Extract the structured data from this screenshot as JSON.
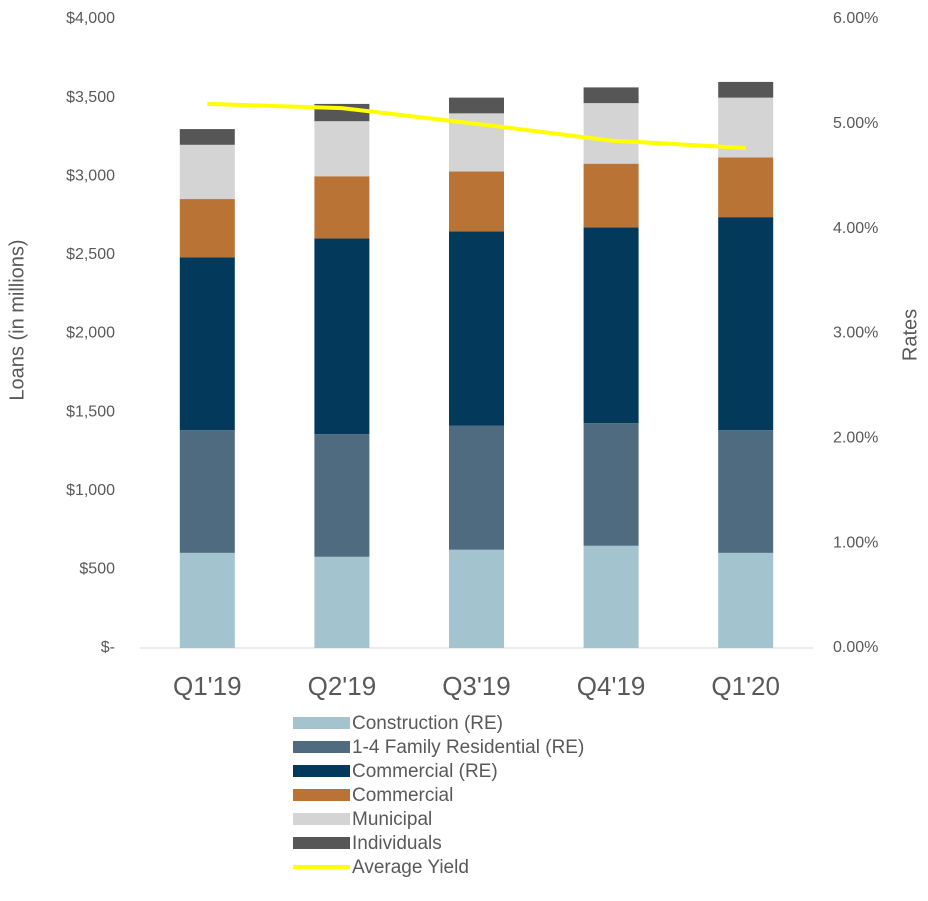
{
  "chart_data": {
    "type": "bar",
    "stacked": true,
    "ylabel": "Loans (in millions)",
    "y2label": "Rates",
    "categories": [
      "Q1'19",
      "Q2'19",
      "Q3'19",
      "Q4'19",
      "Q1'20"
    ],
    "series": [
      {
        "name": "Construction (RE)",
        "color": "#a3c3ce",
        "values": [
          605,
          580,
          625,
          650,
          605
        ]
      },
      {
        "name": "1-4 Family Residential (RE)",
        "color": "#4f6b80",
        "values": [
          780,
          780,
          790,
          780,
          780
        ]
      },
      {
        "name": "Commercial (RE)",
        "color": "#033a5c",
        "values": [
          1100,
          1245,
          1235,
          1245,
          1355
        ]
      },
      {
        "name": "Commercial",
        "color": "#b97334",
        "values": [
          370,
          395,
          380,
          405,
          380
        ]
      },
      {
        "name": "Municipal",
        "color": "#d4d4d4",
        "values": [
          345,
          350,
          370,
          385,
          380
        ]
      },
      {
        "name": "Individuals",
        "color": "#565656",
        "values": [
          100,
          110,
          100,
          100,
          100
        ]
      },
      {
        "name": "Average Yield",
        "color": "#ffff00",
        "type": "line",
        "axis": "y2",
        "values": [
          5.19,
          5.15,
          5.0,
          4.84,
          4.77
        ]
      }
    ],
    "ylim": [
      0,
      4000
    ],
    "yticks": [
      {
        "value": 0,
        "label": "$-"
      },
      {
        "value": 500,
        "label": "$500"
      },
      {
        "value": 1000,
        "label": "$1,000"
      },
      {
        "value": 1500,
        "label": "$1,500"
      },
      {
        "value": 2000,
        "label": "$2,000"
      },
      {
        "value": 2500,
        "label": "$2,500"
      },
      {
        "value": 3000,
        "label": "$3,000"
      },
      {
        "value": 3500,
        "label": "$3,500"
      },
      {
        "value": 4000,
        "label": "$4,000"
      }
    ],
    "y2lim": [
      0,
      6
    ],
    "y2ticks": [
      {
        "value": 0,
        "label": "0.00%"
      },
      {
        "value": 1,
        "label": "1.00%"
      },
      {
        "value": 2,
        "label": "2.00%"
      },
      {
        "value": 3,
        "label": "3.00%"
      },
      {
        "value": 4,
        "label": "4.00%"
      },
      {
        "value": 5,
        "label": "5.00%"
      },
      {
        "value": 6,
        "label": "6.00%"
      }
    ],
    "legend": "bottom"
  }
}
